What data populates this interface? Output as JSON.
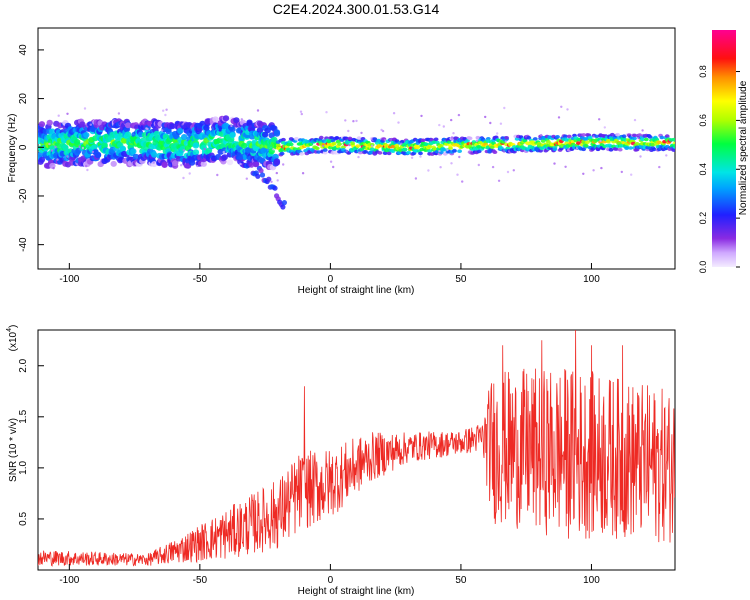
{
  "title": "C2E4.2024.300.01.53.G14",
  "chart_data": [
    {
      "type": "heatmap",
      "xlabel": "Height of straight line (km)",
      "ylabel": "Frequency (Hz)",
      "xlim": [
        -112,
        132
      ],
      "ylim": [
        -50,
        49
      ],
      "xticks": [
        -100,
        -50,
        0,
        50,
        100
      ],
      "yticks": [
        -40,
        -20,
        0,
        20,
        40
      ],
      "colorbar": {
        "label": "Normalized spectral amplitude",
        "range": [
          0.0,
          0.97
        ],
        "ticks": [
          0.0,
          0.2,
          0.4,
          0.6,
          0.8
        ],
        "colormap": "rainbow (white-violet-blue-cyan-green-yellow-red-magenta)"
      },
      "ridge": [
        {
          "x": -110,
          "f": 1
        },
        {
          "x": -90,
          "f": 2
        },
        {
          "x": -70,
          "f": 2
        },
        {
          "x": -55,
          "f": 1
        },
        {
          "x": -40,
          "f": 3
        },
        {
          "x": -25,
          "f": 1
        },
        {
          "x": -20,
          "f": 0
        },
        {
          "x": 0,
          "f": 1
        },
        {
          "x": 30,
          "f": 0
        },
        {
          "x": 60,
          "f": 1
        },
        {
          "x": 100,
          "f": 2
        },
        {
          "x": 130,
          "f": 2
        }
      ],
      "branch_tail": [
        {
          "x": -35,
          "f": -5
        },
        {
          "x": -25,
          "f": -12
        },
        {
          "x": -17,
          "f": -25
        }
      ]
    },
    {
      "type": "line",
      "xlabel": "Height of straight line (km)",
      "ylabel": "SNR (10 * v/v)",
      "yscale_label": "(x10",
      "yscale_exp": "4",
      "xlim": [
        -112,
        132
      ],
      "ylim": [
        0,
        2.35
      ],
      "xticks": [
        -100,
        -50,
        0,
        50,
        100
      ],
      "yticks": [
        0.5,
        1.0,
        1.5,
        2.0
      ],
      "ytick_labels": [
        "0.5",
        "1.0",
        "1.5",
        "2.0"
      ],
      "color": "#ee2a24",
      "envelope": [
        {
          "x": -112,
          "mean": 0.12,
          "spread": 0.08
        },
        {
          "x": -70,
          "mean": 0.1,
          "spread": 0.06
        },
        {
          "x": -60,
          "mean": 0.18,
          "spread": 0.12
        },
        {
          "x": -40,
          "mean": 0.35,
          "spread": 0.25
        },
        {
          "x": -20,
          "mean": 0.55,
          "spread": 0.35
        },
        {
          "x": -12,
          "mean": 0.75,
          "spread": 0.4
        },
        {
          "x": 0,
          "mean": 0.85,
          "spread": 0.35
        },
        {
          "x": 15,
          "mean": 1.1,
          "spread": 0.25
        },
        {
          "x": 30,
          "mean": 1.2,
          "spread": 0.15
        },
        {
          "x": 50,
          "mean": 1.25,
          "spread": 0.12
        },
        {
          "x": 58,
          "mean": 1.3,
          "spread": 0.15
        },
        {
          "x": 62,
          "mean": 1.2,
          "spread": 0.75
        },
        {
          "x": 90,
          "mean": 1.15,
          "spread": 0.85
        },
        {
          "x": 110,
          "mean": 1.1,
          "spread": 0.8
        },
        {
          "x": 132,
          "mean": 1.0,
          "spread": 0.75
        }
      ],
      "spikes": [
        {
          "x": -10,
          "y": 1.8
        },
        {
          "x": 94,
          "y": 2.35
        },
        {
          "x": 100,
          "y": 2.2
        },
        {
          "x": 66,
          "y": 2.2
        },
        {
          "x": 112,
          "y": 2.2
        },
        {
          "x": 81,
          "y": 2.25
        }
      ]
    }
  ]
}
